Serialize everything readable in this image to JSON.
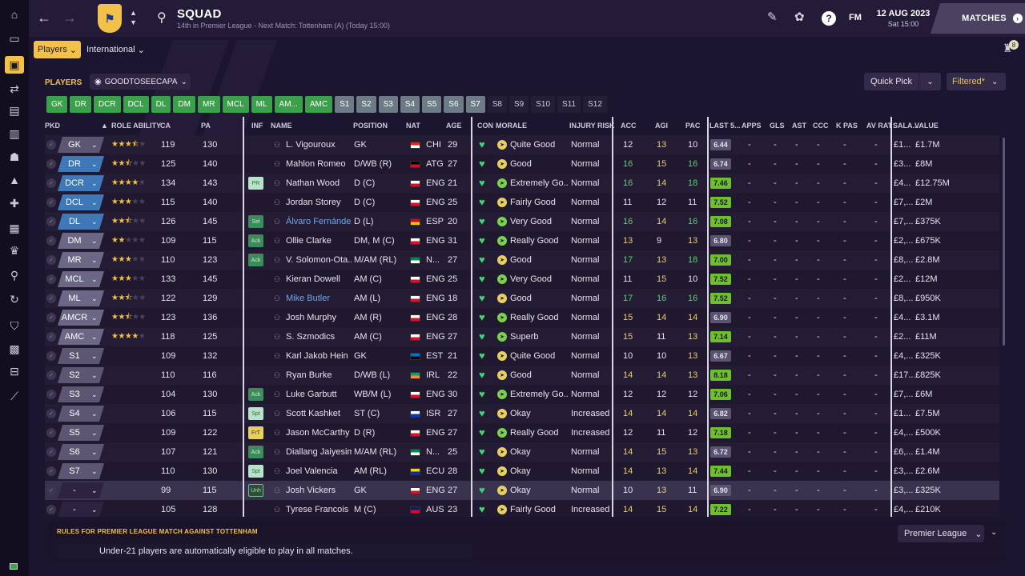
{
  "topbar": {
    "title": "SQUAD",
    "subtitle": "14th in Premier League - Next Match: Tottenham (A) (Today 15:00)",
    "date_main": "12 AUG 2023",
    "date_sub": "Sat 15:00",
    "matches_label": "MATCHES",
    "fm_label": "FM",
    "help_label": "?"
  },
  "subbar": {
    "players_label": "Players",
    "international_label": "International",
    "notification_count": "8"
  },
  "toolbar": {
    "section_label": "PLAYERS",
    "view_name": "GOODTOSEECAPA",
    "quick_pick_label": "Quick Pick",
    "filtered_label": "Filtered*"
  },
  "position_filter": {
    "outfield": [
      "GK",
      "DR",
      "DCR",
      "DCL",
      "DL",
      "DM",
      "MR",
      "MCL",
      "ML",
      "AM...",
      "AMC"
    ],
    "subs": [
      "S1",
      "S2",
      "S3",
      "S4",
      "S5",
      "S6",
      "S7"
    ],
    "reserves": [
      "S8",
      "S9",
      "S10",
      "S11",
      "S12"
    ]
  },
  "columns": {
    "pkd": "PKD",
    "role_ability": "ROLE ABILITY",
    "ca": "CA",
    "pa": "PA",
    "inf": "INF",
    "name": "NAME",
    "position": "POSITION",
    "nat": "NAT",
    "age": "AGE",
    "con": "CON",
    "morale": "MORALE",
    "injury_risk": "INJURY RISK",
    "acc": "ACC",
    "agi": "AGI",
    "pac": "PAC",
    "last5": "LAST 5...",
    "apps": "APPS",
    "gls": "GLS",
    "ast": "AST",
    "ccc": "CCC",
    "kpas": "K PAS",
    "avrat": "AV RAT",
    "salary": "SALA...",
    "value": "VALUE"
  },
  "players": [
    {
      "pkd": "GK",
      "stars": 3.5,
      "ca": "119",
      "pa": "130",
      "inf": "",
      "name": "L. Vigouroux",
      "position": "GK",
      "nat": "CHI",
      "age": "29",
      "morale": "Quite Good",
      "injury": "Normal",
      "acc": "12",
      "agi": "13",
      "pac": "10",
      "last5": "6.44",
      "apps": "-",
      "gls": "-",
      "ast": "-",
      "ccc": "-",
      "kpas": "-",
      "avrat": "-",
      "salary": "£1...",
      "value": "£1.7M"
    },
    {
      "pkd": "DR",
      "stars": 2.5,
      "ca": "125",
      "pa": "140",
      "inf": "",
      "name": "Mahlon Romeo",
      "position": "D/WB (R)",
      "nat": "ATG",
      "age": "27",
      "morale": "Good",
      "injury": "Normal",
      "acc": "16",
      "agi": "15",
      "pac": "16",
      "last5": "6.74",
      "apps": "-",
      "gls": "-",
      "ast": "-",
      "ccc": "-",
      "kpas": "-",
      "avrat": "-",
      "salary": "£3...",
      "value": "£8M"
    },
    {
      "pkd": "DCR",
      "stars": 4,
      "ca": "134",
      "pa": "143",
      "inf": "PR",
      "name": "Nathan Wood",
      "position": "D (C)",
      "nat": "ENG",
      "age": "21",
      "morale": "Extremely Go...",
      "injury": "Normal",
      "acc": "16",
      "agi": "14",
      "pac": "18",
      "last5": "7.46",
      "apps": "-",
      "gls": "-",
      "ast": "-",
      "ccc": "-",
      "kpas": "-",
      "avrat": "-",
      "salary": "£4...",
      "value": "£12.75M"
    },
    {
      "pkd": "DCL",
      "stars": 3,
      "ca": "115",
      "pa": "140",
      "inf": "",
      "name": "Jordan Storey",
      "position": "D (C)",
      "nat": "ENG",
      "age": "25",
      "morale": "Fairly Good",
      "injury": "Normal",
      "acc": "11",
      "agi": "12",
      "pac": "11",
      "last5": "7.52",
      "apps": "-",
      "gls": "-",
      "ast": "-",
      "ccc": "-",
      "kpas": "-",
      "avrat": "-",
      "salary": "£7,...",
      "value": "£2M"
    },
    {
      "pkd": "DL",
      "stars": 2.5,
      "ca": "126",
      "pa": "145",
      "inf": "Sel",
      "name": "Álvaro Fernández",
      "position": "D (L)",
      "nat": "ESP",
      "age": "20",
      "morale": "Very Good",
      "injury": "Normal",
      "acc": "16",
      "agi": "14",
      "pac": "16",
      "last5": "7.08",
      "apps": "-",
      "gls": "-",
      "ast": "-",
      "ccc": "-",
      "kpas": "-",
      "avrat": "-",
      "salary": "£7,...",
      "value": "£375K"
    },
    {
      "pkd": "DM",
      "stars": 2,
      "ca": "109",
      "pa": "115",
      "inf": "Ack",
      "name": "Ollie Clarke",
      "position": "DM, M (C)",
      "nat": "ENG",
      "age": "31",
      "morale": "Really Good",
      "injury": "Normal",
      "acc": "13",
      "agi": "9",
      "pac": "13",
      "last5": "6.80",
      "apps": "-",
      "gls": "-",
      "ast": "-",
      "ccc": "-",
      "kpas": "-",
      "avrat": "-",
      "salary": "£2,...",
      "value": "£675K"
    },
    {
      "pkd": "MR",
      "stars": 3,
      "ca": "110",
      "pa": "123",
      "inf": "Ack",
      "name": "V. Solomon-Ota...",
      "position": "M/AM (RL)",
      "nat": "N...",
      "age": "27",
      "morale": "Good",
      "injury": "Normal",
      "acc": "17",
      "agi": "13",
      "pac": "18",
      "last5": "7.00",
      "apps": "-",
      "gls": "-",
      "ast": "-",
      "ccc": "-",
      "kpas": "-",
      "avrat": "-",
      "salary": "£8,...",
      "value": "£2.8M"
    },
    {
      "pkd": "MCL",
      "stars": 3,
      "ca": "133",
      "pa": "145",
      "inf": "",
      "name": "Kieran Dowell",
      "position": "AM (C)",
      "nat": "ENG",
      "age": "25",
      "morale": "Very Good",
      "injury": "Normal",
      "acc": "11",
      "agi": "15",
      "pac": "10",
      "last5": "7.52",
      "apps": "-",
      "gls": "-",
      "ast": "-",
      "ccc": "-",
      "kpas": "-",
      "avrat": "-",
      "salary": "£2...",
      "value": "£12M"
    },
    {
      "pkd": "ML",
      "stars": 2.5,
      "ca": "122",
      "pa": "129",
      "inf": "",
      "name": "Mike Butler",
      "position": "AM (L)",
      "nat": "ENG",
      "age": "18",
      "morale": "Good",
      "injury": "Normal",
      "acc": "17",
      "agi": "16",
      "pac": "16",
      "last5": "7.52",
      "apps": "-",
      "gls": "-",
      "ast": "-",
      "ccc": "-",
      "kpas": "-",
      "avrat": "-",
      "salary": "£8,...",
      "value": "£950K"
    },
    {
      "pkd": "AMCR",
      "stars": 2.5,
      "ca": "123",
      "pa": "136",
      "inf": "",
      "name": "Josh Murphy",
      "position": "AM (R)",
      "nat": "ENG",
      "age": "28",
      "morale": "Really Good",
      "injury": "Normal",
      "acc": "15",
      "agi": "14",
      "pac": "14",
      "last5": "6.90",
      "apps": "-",
      "gls": "-",
      "ast": "-",
      "ccc": "-",
      "kpas": "-",
      "avrat": "-",
      "salary": "£4...",
      "value": "£3.1M"
    },
    {
      "pkd": "AMC",
      "stars": 4,
      "ca": "118",
      "pa": "125",
      "inf": "",
      "name": "S. Szmodics",
      "position": "AM (C)",
      "nat": "ENG",
      "age": "27",
      "morale": "Superb",
      "injury": "Normal",
      "acc": "15",
      "agi": "11",
      "pac": "13",
      "last5": "7.14",
      "apps": "-",
      "gls": "-",
      "ast": "-",
      "ccc": "-",
      "kpas": "-",
      "avrat": "-",
      "salary": "£2...",
      "value": "£11M"
    },
    {
      "pkd": "S1",
      "stars": 0,
      "ca": "109",
      "pa": "132",
      "inf": "",
      "name": "Karl Jakob Hein",
      "position": "GK",
      "nat": "EST",
      "age": "21",
      "morale": "Quite Good",
      "injury": "Normal",
      "acc": "10",
      "agi": "10",
      "pac": "13",
      "last5": "6.67",
      "apps": "-",
      "gls": "-",
      "ast": "-",
      "ccc": "-",
      "kpas": "-",
      "avrat": "-",
      "salary": "£4,...",
      "value": "£325K"
    },
    {
      "pkd": "S2",
      "stars": 0,
      "ca": "110",
      "pa": "116",
      "inf": "",
      "name": "Ryan Burke",
      "position": "D/WB (L)",
      "nat": "IRL",
      "age": "22",
      "morale": "Good",
      "injury": "Normal",
      "acc": "14",
      "agi": "14",
      "pac": "13",
      "last5": "8.18",
      "apps": "-",
      "gls": "-",
      "ast": "-",
      "ccc": "-",
      "kpas": "-",
      "avrat": "-",
      "salary": "£17...",
      "value": "£825K"
    },
    {
      "pkd": "S3",
      "stars": 0,
      "ca": "104",
      "pa": "130",
      "inf": "Ack",
      "name": "Luke Garbutt",
      "position": "WB/M (L)",
      "nat": "ENG",
      "age": "30",
      "morale": "Extremely Go...",
      "injury": "Normal",
      "acc": "12",
      "agi": "12",
      "pac": "12",
      "last5": "7.06",
      "apps": "-",
      "gls": "-",
      "ast": "-",
      "ccc": "-",
      "kpas": "-",
      "avrat": "-",
      "salary": "£7,...",
      "value": "£6M"
    },
    {
      "pkd": "S4",
      "stars": 0,
      "ca": "106",
      "pa": "115",
      "inf": "Spt",
      "name": "Scott Kashket",
      "position": "ST (C)",
      "nat": "ISR",
      "age": "27",
      "morale": "Okay",
      "injury": "Increased",
      "acc": "14",
      "agi": "14",
      "pac": "14",
      "last5": "6.82",
      "apps": "-",
      "gls": "-",
      "ast": "-",
      "ccc": "-",
      "kpas": "-",
      "avrat": "-",
      "salary": "£1...",
      "value": "£7.5M"
    },
    {
      "pkd": "S5",
      "stars": 0,
      "ca": "109",
      "pa": "122",
      "inf": "FrT",
      "name": "Jason McCarthy",
      "position": "D (R)",
      "nat": "ENG",
      "age": "27",
      "morale": "Really Good",
      "injury": "Increased",
      "acc": "12",
      "agi": "11",
      "pac": "12",
      "last5": "7.18",
      "apps": "-",
      "gls": "-",
      "ast": "-",
      "ccc": "-",
      "kpas": "-",
      "avrat": "-",
      "salary": "£4,...",
      "value": "£500K"
    },
    {
      "pkd": "S6",
      "stars": 0,
      "ca": "107",
      "pa": "121",
      "inf": "Ack",
      "name": "Diallang Jaiyesimi",
      "position": "M/AM (RL)",
      "nat": "N...",
      "age": "25",
      "morale": "Okay",
      "injury": "Normal",
      "acc": "14",
      "agi": "15",
      "pac": "13",
      "last5": "6.72",
      "apps": "-",
      "gls": "-",
      "ast": "-",
      "ccc": "-",
      "kpas": "-",
      "avrat": "-",
      "salary": "£6,...",
      "value": "£1.4M"
    },
    {
      "pkd": "S7",
      "stars": 0,
      "ca": "110",
      "pa": "130",
      "inf": "Spt",
      "name": "Joel Valencia",
      "position": "AM (RL)",
      "nat": "ECU",
      "age": "28",
      "morale": "Okay",
      "injury": "Normal",
      "acc": "14",
      "agi": "13",
      "pac": "14",
      "last5": "7.44",
      "apps": "-",
      "gls": "-",
      "ast": "-",
      "ccc": "-",
      "kpas": "-",
      "avrat": "-",
      "salary": "£3,...",
      "value": "£2.6M"
    },
    {
      "pkd": "-",
      "stars": 0,
      "ca": "99",
      "pa": "115",
      "inf": "Unh",
      "name": "Josh Vickers",
      "position": "GK",
      "nat": "ENG",
      "age": "27",
      "morale": "Okay",
      "injury": "Normal",
      "acc": "10",
      "agi": "13",
      "pac": "11",
      "last5": "6.90",
      "apps": "-",
      "gls": "-",
      "ast": "-",
      "ccc": "-",
      "kpas": "-",
      "avrat": "-",
      "salary": "£3,...",
      "value": "£325K"
    },
    {
      "pkd": "-",
      "stars": 0,
      "ca": "105",
      "pa": "128",
      "inf": "",
      "name": "Tyrese Francois",
      "position": "M (C)",
      "nat": "AUS",
      "age": "23",
      "morale": "Fairly Good",
      "injury": "Increased",
      "acc": "14",
      "agi": "15",
      "pac": "14",
      "last5": "7.22",
      "apps": "-",
      "gls": "-",
      "ast": "-",
      "ccc": "-",
      "kpas": "-",
      "avrat": "-",
      "salary": "£4,...",
      "value": "£210K"
    }
  ],
  "rules": {
    "title": "RULES FOR PREMIER LEAGUE MATCH AGAINST TOTTENHAM",
    "text": "Under-21 players are automatically eligible to play in all matches.",
    "competition": "Premier League"
  }
}
